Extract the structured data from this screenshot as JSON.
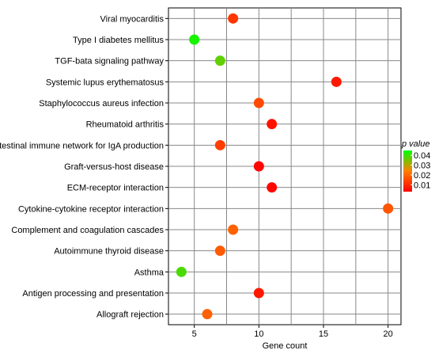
{
  "chart_data": {
    "type": "scatter",
    "title": "",
    "xlabel": "Gene count",
    "ylabel": "",
    "xlim": [
      3,
      21
    ],
    "xticks": [
      5,
      10,
      15,
      20
    ],
    "grid": true,
    "categories": [
      "Viral myocarditis",
      "Type I diabetes mellitus",
      "TGF-bata signaling pathway",
      "Systemic lupus erythematosus",
      "Staphylococcus aureus infection",
      "Rheumatoid arthritis",
      "Intestinal immune network for IgA production",
      "Graft-versus-host disease",
      "ECM-receptor interaction",
      "Cytokine-cytokine receptor interaction",
      "Complement and coagulation cascades",
      "Autoimmune thyroid disease",
      "Asthma",
      "Antigen processing and presentation",
      "Allograft rejection"
    ],
    "points": [
      {
        "category": "Viral myocarditis",
        "gene_count": 8,
        "p_value": 0.012
      },
      {
        "category": "Type I diabetes mellitus",
        "gene_count": 5,
        "p_value": 0.043
      },
      {
        "category": "TGF-bata signaling pathway",
        "gene_count": 7,
        "p_value": 0.037
      },
      {
        "category": "Systemic lupus erythematosus",
        "gene_count": 16,
        "p_value": 0.007
      },
      {
        "category": "Staphylococcus aureus infection",
        "gene_count": 10,
        "p_value": 0.015
      },
      {
        "category": "Rheumatoid arthritis",
        "gene_count": 11,
        "p_value": 0.006
      },
      {
        "category": "Intestinal immune network for IgA production",
        "gene_count": 7,
        "p_value": 0.013
      },
      {
        "category": "Graft-versus-host disease",
        "gene_count": 10,
        "p_value": 0.004
      },
      {
        "category": "ECM-receptor interaction",
        "gene_count": 11,
        "p_value": 0.004
      },
      {
        "category": "Cytokine-cytokine receptor interaction",
        "gene_count": 20,
        "p_value": 0.017
      },
      {
        "category": "Complement and coagulation cascades",
        "gene_count": 8,
        "p_value": 0.019
      },
      {
        "category": "Autoimmune thyroid disease",
        "gene_count": 7,
        "p_value": 0.018
      },
      {
        "category": "Asthma",
        "gene_count": 4,
        "p_value": 0.039
      },
      {
        "category": "Antigen processing and presentation",
        "gene_count": 10,
        "p_value": 0.007
      },
      {
        "category": "Allograft rejection",
        "gene_count": 6,
        "p_value": 0.019
      }
    ],
    "legend": {
      "title": "p value",
      "position": "right",
      "min": 0.003,
      "max": 0.045,
      "ticks": [
        0.01,
        0.02,
        0.03,
        0.04
      ],
      "color_low": "#ff0000",
      "color_high": "#00ff00"
    }
  }
}
